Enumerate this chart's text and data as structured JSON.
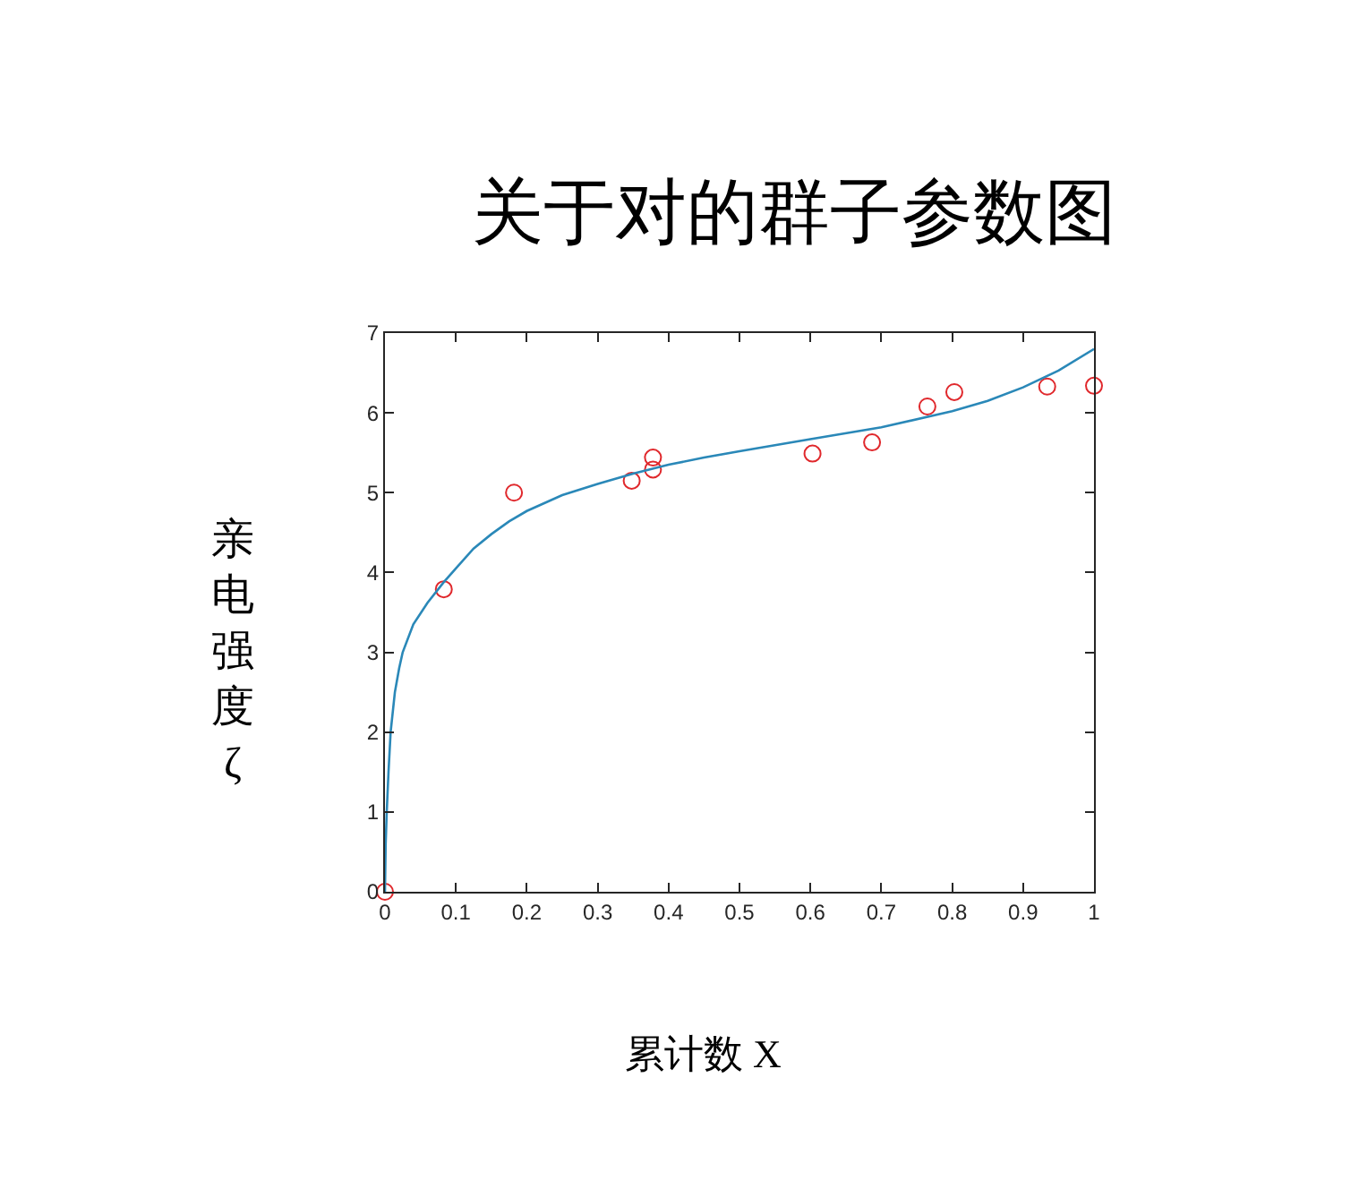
{
  "chart_data": {
    "type": "scatter",
    "title": "关于对的群子参数图",
    "xlabel": "累计数 X",
    "ylabel": "亲电强度ζ",
    "marker": "circle",
    "grid": false,
    "xlim": [
      0,
      1
    ],
    "xticks": [
      0,
      0.1,
      0.2,
      0.3,
      0.4,
      0.5,
      0.6,
      0.7,
      0.8,
      0.9,
      1
    ],
    "ylim": [
      0,
      7
    ],
    "yticks": [
      0,
      1,
      2,
      3,
      4,
      5,
      6,
      7
    ],
    "series": [
      {
        "color": "#e0282c",
        "x": [
          0,
          0.083,
          0.182,
          0.348,
          0.378,
          0.378,
          0.603,
          0.687,
          0.765,
          0.803,
          0.934,
          1.0
        ],
        "values": [
          0,
          3.79,
          5.0,
          5.15,
          5.44,
          5.29,
          5.49,
          5.63,
          6.08,
          6.26,
          6.33,
          6.34
        ]
      },
      {
        "type": "line",
        "marker": "none",
        "color": "#2a88b8",
        "x": [
          0,
          0.001,
          0.0025,
          0.005,
          0.008,
          0.014,
          0.02,
          0.025,
          0.04,
          0.06,
          0.083,
          0.1,
          0.125,
          0.15,
          0.175,
          0.2,
          0.25,
          0.3,
          0.35,
          0.4,
          0.45,
          0.5,
          0.6,
          0.7,
          0.8,
          0.85,
          0.9,
          0.95,
          1.0
        ],
        "values": [
          0,
          0.6,
          1.0,
          1.5,
          2.0,
          2.5,
          2.8,
          3.0,
          3.35,
          3.62,
          3.88,
          4.05,
          4.3,
          4.48,
          4.64,
          4.77,
          4.97,
          5.11,
          5.24,
          5.35,
          5.44,
          5.52,
          5.67,
          5.82,
          6.02,
          6.15,
          6.32,
          6.53,
          6.8
        ]
      }
    ]
  }
}
